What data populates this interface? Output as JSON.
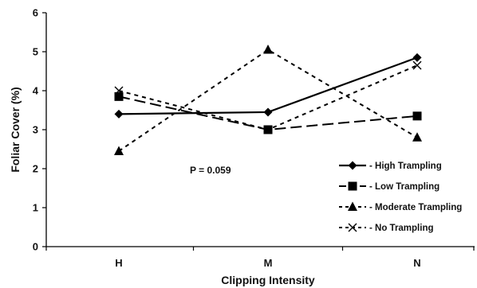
{
  "chart_data": {
    "type": "line",
    "title": "",
    "xlabel": "Clipping Intensity",
    "ylabel": "Foliar Cover (%)",
    "categories": [
      "H",
      "M",
      "N"
    ],
    "ylim": [
      0,
      6
    ],
    "yticks": [
      0,
      1,
      2,
      3,
      4,
      5,
      6
    ],
    "grid": false,
    "legend_position": "lower-right",
    "annotation": "P = 0.059",
    "series": [
      {
        "name": "High Trampling",
        "values": [
          3.4,
          3.45,
          4.85
        ],
        "marker": "diamond",
        "line": "solid"
      },
      {
        "name": "Low Trampling",
        "values": [
          3.85,
          3.0,
          3.35
        ],
        "marker": "square",
        "line": "long-dash"
      },
      {
        "name": "Moderate Trampling",
        "values": [
          2.45,
          5.05,
          2.8
        ],
        "marker": "triangle",
        "line": "short-dash"
      },
      {
        "name": "No Trampling",
        "values": [
          4.0,
          3.0,
          4.65
        ],
        "marker": "x",
        "line": "short-dash"
      }
    ]
  }
}
